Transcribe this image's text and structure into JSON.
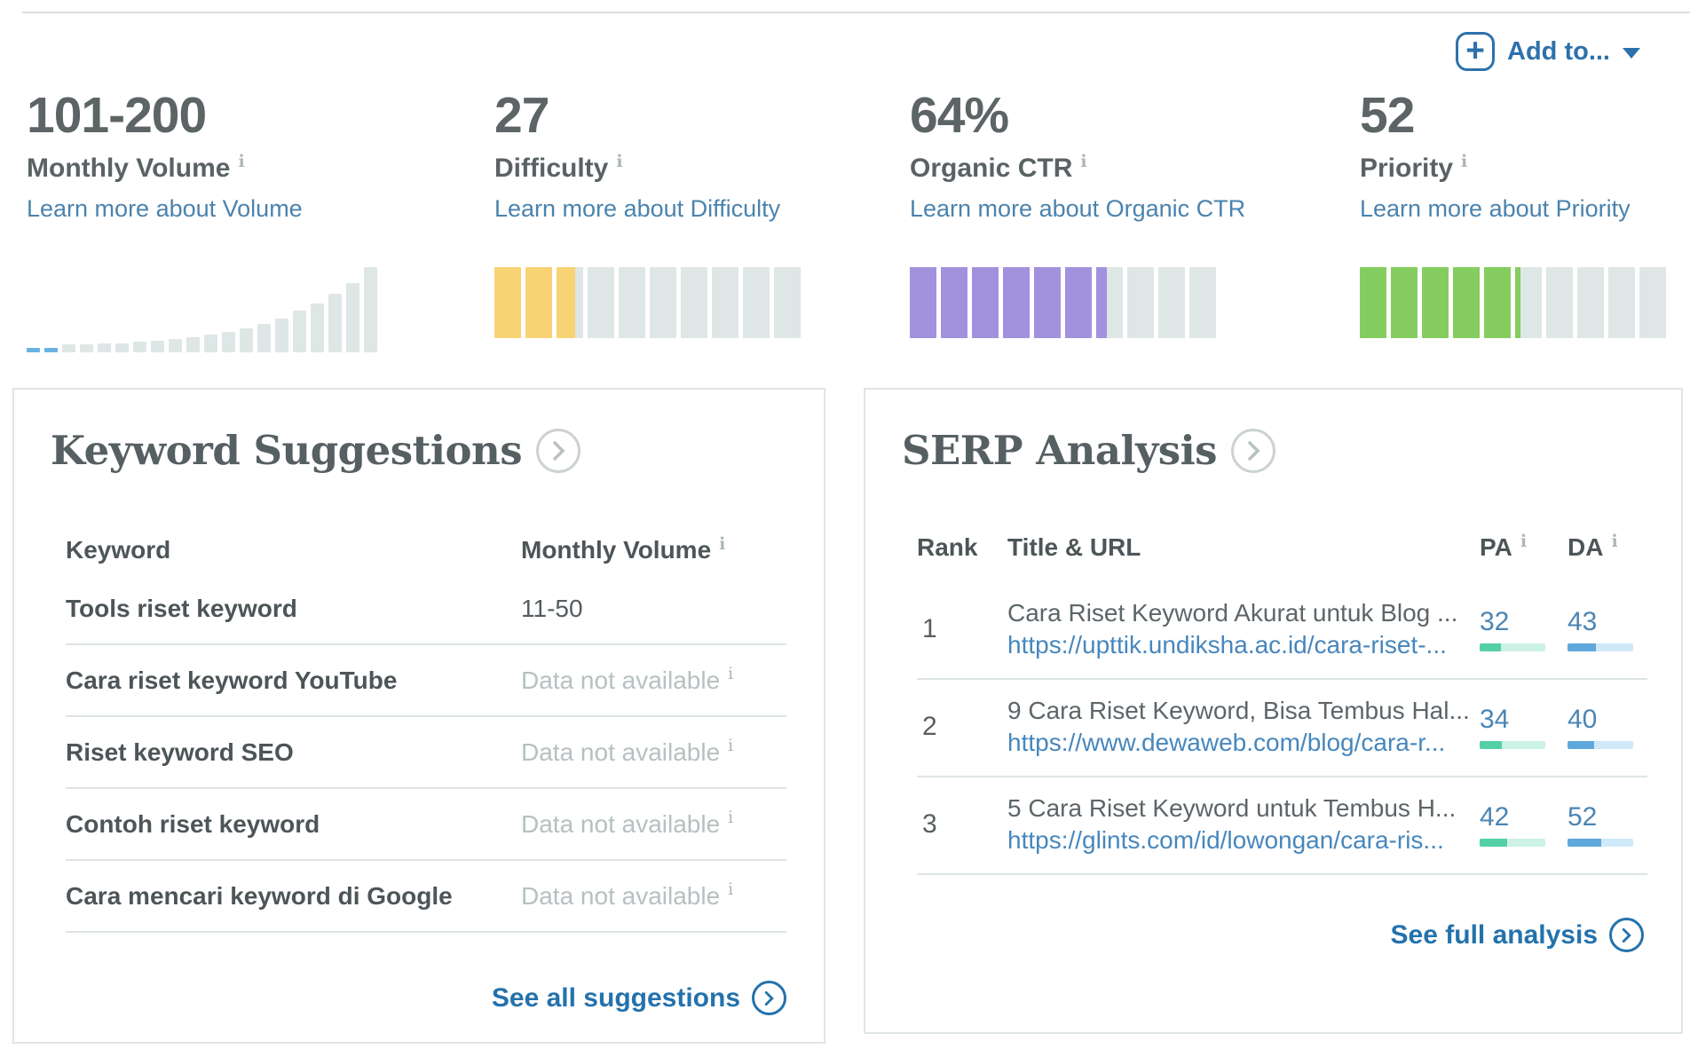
{
  "colors": {
    "accent_blue": "#2d71ab",
    "link_blue": "#4b83ad",
    "url_blue": "#4787bd",
    "score_blue": "#4a85b5",
    "track_gray": "#dee6e6",
    "volume_highlight": "#6ab2e2",
    "difficulty_fill": "#f7d374",
    "ctr_fill": "#a292dd",
    "priority_fill": "#85cd60",
    "pa_fill": "#54cfa6",
    "pa_track": "#cdf2e6",
    "da_fill": "#5fa8dc",
    "da_track": "#cfe9f8"
  },
  "icons": {
    "plus": "+",
    "info": "i",
    "dropdown_caret": "caret-down",
    "chevron_right": "chevron-right"
  },
  "header": {
    "add_to_label": "Add to..."
  },
  "metrics": [
    {
      "value": "101-200",
      "label": "Monthly Volume",
      "link": "Learn more about Volume",
      "chart": {
        "type": "histogram",
        "bars": 20,
        "heights_pct": [
          5,
          5,
          9,
          9,
          10,
          10,
          12,
          14,
          16,
          18,
          21,
          24,
          28,
          33,
          40,
          49,
          57,
          69,
          81,
          100
        ],
        "highlight_count": 2
      }
    },
    {
      "value": "27",
      "label": "Difficulty",
      "link": "Learn more about Difficulty",
      "chart": {
        "type": "segments",
        "segments": 10,
        "percent": 27,
        "fill": "difficulty_fill"
      }
    },
    {
      "value": "64%",
      "label": "Organic CTR",
      "link": "Learn more about Organic CTR",
      "chart": {
        "type": "segments",
        "segments": 10,
        "percent": 64,
        "fill": "ctr_fill"
      }
    },
    {
      "value": "52",
      "label": "Priority",
      "link": "Learn more about Priority",
      "chart": {
        "type": "segments",
        "segments": 10,
        "percent": 52,
        "fill": "priority_fill"
      }
    }
  ],
  "keyword_suggestions": {
    "title": "Keyword Suggestions",
    "columns": {
      "keyword": "Keyword",
      "volume": "Monthly Volume"
    },
    "rows": [
      {
        "keyword": "Tools riset keyword",
        "volume": "11-50",
        "available": true
      },
      {
        "keyword": "Cara riset keyword YouTube",
        "volume": "Data not available",
        "available": false
      },
      {
        "keyword": "Riset keyword SEO",
        "volume": "Data not available",
        "available": false
      },
      {
        "keyword": "Contoh riset keyword",
        "volume": "Data not available",
        "available": false
      },
      {
        "keyword": "Cara mencari keyword di Google",
        "volume": "Data not available",
        "available": false
      }
    ],
    "footer_link": "See all suggestions"
  },
  "serp_analysis": {
    "title": "SERP Analysis",
    "columns": {
      "rank": "Rank",
      "title_url": "Title & URL",
      "pa": "PA",
      "da": "DA"
    },
    "rows": [
      {
        "rank": "1",
        "title": "Cara Riset Keyword Akurat untuk Blog ...",
        "url": "https://upttik.undiksha.ac.id/cara-riset-...",
        "pa": 32,
        "da": 43
      },
      {
        "rank": "2",
        "title": "9 Cara Riset Keyword, Bisa Tembus Hal...",
        "url": "https://www.dewaweb.com/blog/cara-r...",
        "pa": 34,
        "da": 40
      },
      {
        "rank": "3",
        "title": "5 Cara Riset Keyword untuk Tembus H...",
        "url": "https://glints.com/id/lowongan/cara-ris...",
        "pa": 42,
        "da": 52
      }
    ],
    "footer_link": "See full analysis"
  }
}
